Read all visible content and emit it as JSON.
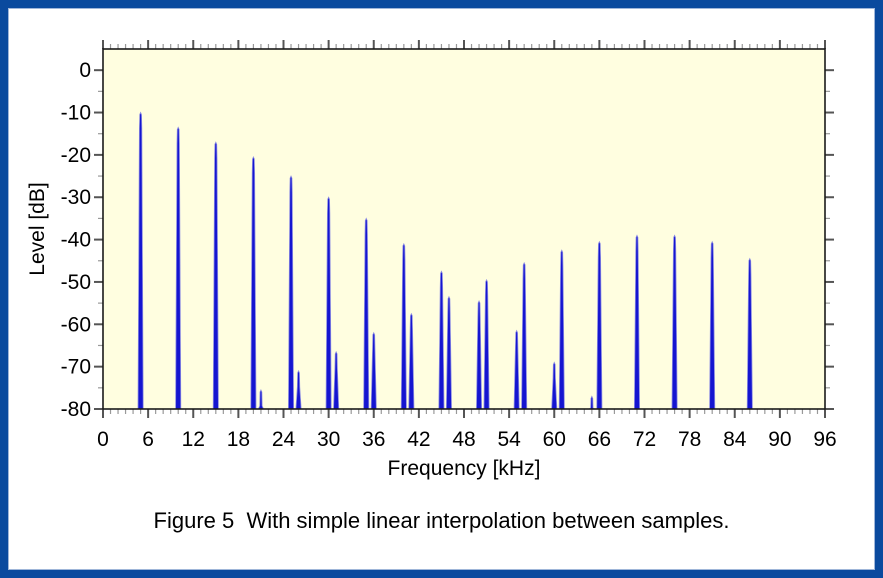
{
  "figure": {
    "caption": "Figure 5  With simple linear interpolation between samples."
  },
  "chart_data": {
    "type": "line",
    "subtype": "frequency-spectrum-peaks",
    "title": "",
    "xlabel": "Frequency [kHz]",
    "ylabel": "Level [dB]",
    "xlim": [
      0,
      96
    ],
    "ylim": [
      -80,
      5
    ],
    "x_major_ticks": [
      0,
      6,
      12,
      18,
      24,
      30,
      36,
      42,
      48,
      54,
      60,
      66,
      72,
      78,
      84,
      90,
      96
    ],
    "x_minor_step_khz": 1,
    "y_major_ticks": [
      0,
      -10,
      -20,
      -30,
      -40,
      -50,
      -60,
      -70,
      -80
    ],
    "y_minor_step_db": 5,
    "grid": false,
    "legend": null,
    "noise_floor_db": -80,
    "peaks": [
      {
        "f_khz": 5,
        "level_db": -10
      },
      {
        "f_khz": 10,
        "level_db": -13.5
      },
      {
        "f_khz": 15,
        "level_db": -17
      },
      {
        "f_khz": 20,
        "level_db": -20.5
      },
      {
        "f_khz": 21,
        "level_db": -75.5
      },
      {
        "f_khz": 25,
        "level_db": -25
      },
      {
        "f_khz": 26,
        "level_db": -71
      },
      {
        "f_khz": 30,
        "level_db": -30
      },
      {
        "f_khz": 31,
        "level_db": -66.5
      },
      {
        "f_khz": 35,
        "level_db": -35
      },
      {
        "f_khz": 36,
        "level_db": -62
      },
      {
        "f_khz": 40,
        "level_db": -41
      },
      {
        "f_khz": 41,
        "level_db": -57.5
      },
      {
        "f_khz": 45,
        "level_db": -47.5
      },
      {
        "f_khz": 46,
        "level_db": -53.5
      },
      {
        "f_khz": 50,
        "level_db": -54.5
      },
      {
        "f_khz": 51,
        "level_db": -49.5
      },
      {
        "f_khz": 55,
        "level_db": -61.5
      },
      {
        "f_khz": 56,
        "level_db": -45.5
      },
      {
        "f_khz": 60,
        "level_db": -69
      },
      {
        "f_khz": 61,
        "level_db": -42.5
      },
      {
        "f_khz": 65,
        "level_db": -77
      },
      {
        "f_khz": 66,
        "level_db": -40.5
      },
      {
        "f_khz": 71,
        "level_db": -39
      },
      {
        "f_khz": 76,
        "level_db": -39
      },
      {
        "f_khz": 81,
        "level_db": -40.5
      },
      {
        "f_khz": 86,
        "level_db": -44.5
      }
    ],
    "colors": {
      "plot_background": "#fffee0",
      "peak_blue": "#1515d0",
      "peak_halo": "#8a8ae2",
      "outer_frame_blue": "#0a4a9e",
      "plot_frame": "#1a1a1a",
      "tick_major": "#555555",
      "tick_minor": "#999999",
      "text": "#000000"
    }
  }
}
